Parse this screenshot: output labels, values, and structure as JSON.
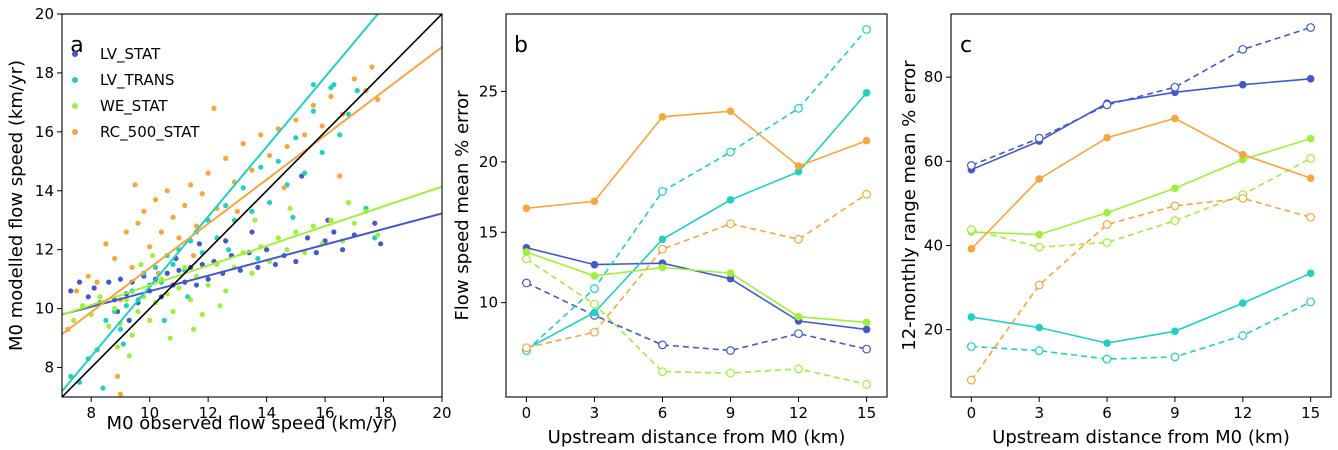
{
  "colors": {
    "LV_STAT": "#4459c9",
    "LV_TRANS": "#1fd0c3",
    "WE_STAT": "#9ef03a",
    "RC_500_STAT": "#f8a53b",
    "identity": "#000000"
  },
  "chart_data": [
    {
      "type": "scatter",
      "panel_label": "a",
      "xlabel": "M0 observed flow speed (km/yr)",
      "ylabel": "M0 modelled flow speed (km/yr)",
      "xlim": [
        7,
        20
      ],
      "ylim": [
        7,
        20
      ],
      "xticks": [
        "8",
        "10",
        "12",
        "14",
        "16",
        "18",
        "20"
      ],
      "yticks": [
        "8",
        "10",
        "12",
        "14",
        "16",
        "18",
        "20"
      ],
      "legend_position": "top-left",
      "identity_line": true,
      "series": [
        {
          "name": "LV_STAT",
          "fit": {
            "slope": 0.264,
            "intercept": 7.95
          },
          "points": [
            [
              7.3,
              10.6
            ],
            [
              7.6,
              10.9
            ],
            [
              7.9,
              10.4
            ],
            [
              8.1,
              10.7
            ],
            [
              8.3,
              10.2
            ],
            [
              8.6,
              10.9
            ],
            [
              8.8,
              10.3
            ],
            [
              9.0,
              11.0
            ],
            [
              9.2,
              10.5
            ],
            [
              9.4,
              10.9
            ],
            [
              9.6,
              10.2
            ],
            [
              9.8,
              11.1
            ],
            [
              10.0,
              10.6
            ],
            [
              10.2,
              11.0
            ],
            [
              10.4,
              10.4
            ],
            [
              10.6,
              11.2
            ],
            [
              10.8,
              10.8
            ],
            [
              11.0,
              11.3
            ],
            [
              11.2,
              10.9
            ],
            [
              11.4,
              11.4
            ],
            [
              11.6,
              10.8
            ],
            [
              11.8,
              11.5
            ],
            [
              12.0,
              11.0
            ],
            [
              12.2,
              11.6
            ],
            [
              12.5,
              11.2
            ],
            [
              12.8,
              11.8
            ],
            [
              13.1,
              11.3
            ],
            [
              13.4,
              11.9
            ],
            [
              13.7,
              11.4
            ],
            [
              14.0,
              12.0
            ],
            [
              14.3,
              11.5
            ],
            [
              14.6,
              11.8
            ],
            [
              15.0,
              11.6
            ],
            [
              15.4,
              12.4
            ],
            [
              15.7,
              11.9
            ],
            [
              16.0,
              12.3
            ],
            [
              16.3,
              12.6
            ],
            [
              16.6,
              12.0
            ],
            [
              17.0,
              12.5
            ],
            [
              17.4,
              13.4
            ],
            [
              17.7,
              12.9
            ],
            [
              17.9,
              12.2
            ],
            [
              15.2,
              14.5
            ],
            [
              16.1,
              13.0
            ],
            [
              13.5,
              12.6
            ],
            [
              12.6,
              12.3
            ],
            [
              9.3,
              9.6
            ],
            [
              8.9,
              9.9
            ],
            [
              10.9,
              11.7
            ],
            [
              11.7,
              12.2
            ]
          ]
        },
        {
          "name": "LV_TRANS",
          "fit": {
            "slope": 1.185,
            "intercept": -1.1
          },
          "points": [
            [
              7.3,
              7.7
            ],
            [
              7.6,
              7.5
            ],
            [
              7.9,
              8.3
            ],
            [
              8.2,
              8.6
            ],
            [
              8.5,
              9.6
            ],
            [
              8.8,
              9.9
            ],
            [
              9.0,
              9.3
            ],
            [
              9.2,
              10.1
            ],
            [
              9.4,
              10.6
            ],
            [
              9.6,
              10.3
            ],
            [
              9.8,
              11.2
            ],
            [
              10.0,
              10.8
            ],
            [
              10.2,
              11.4
            ],
            [
              10.4,
              10.9
            ],
            [
              10.6,
              11.8
            ],
            [
              10.8,
              11.5
            ],
            [
              11.0,
              12.0
            ],
            [
              11.2,
              11.3
            ],
            [
              11.4,
              12.3
            ],
            [
              11.6,
              12.6
            ],
            [
              11.8,
              11.9
            ],
            [
              12.0,
              13.0
            ],
            [
              12.3,
              12.4
            ],
            [
              12.6,
              13.5
            ],
            [
              12.9,
              13.0
            ],
            [
              13.2,
              14.1
            ],
            [
              13.5,
              13.3
            ],
            [
              13.8,
              14.8
            ],
            [
              14.1,
              13.6
            ],
            [
              14.4,
              15.0
            ],
            [
              14.7,
              14.2
            ],
            [
              15.0,
              15.8
            ],
            [
              15.3,
              14.6
            ],
            [
              15.6,
              16.7
            ],
            [
              15.9,
              15.3
            ],
            [
              16.2,
              17.5
            ],
            [
              16.5,
              15.9
            ],
            [
              16.8,
              16.6
            ],
            [
              17.1,
              17.4
            ],
            [
              17.4,
              13.4
            ],
            [
              17.7,
              12.4
            ],
            [
              15.6,
              17.6
            ],
            [
              16.3,
              17.6
            ],
            [
              8.4,
              7.3
            ],
            [
              9.1,
              8.8
            ],
            [
              13.7,
              11.7
            ],
            [
              12.7,
              12.0
            ],
            [
              10.5,
              9.6
            ],
            [
              11.3,
              10.4
            ],
            [
              14.9,
              13.1
            ]
          ]
        },
        {
          "name": "WE_STAT",
          "fit": {
            "slope": 0.335,
            "intercept": 7.44
          },
          "points": [
            [
              7.4,
              9.6
            ],
            [
              7.7,
              10.1
            ],
            [
              8.0,
              9.8
            ],
            [
              8.3,
              10.4
            ],
            [
              8.6,
              9.4
            ],
            [
              8.8,
              10.0
            ],
            [
              9.0,
              9.5
            ],
            [
              9.2,
              10.3
            ],
            [
              9.4,
              9.1
            ],
            [
              9.6,
              9.9
            ],
            [
              9.8,
              10.4
            ],
            [
              10.0,
              9.6
            ],
            [
              10.2,
              10.2
            ],
            [
              10.4,
              11.0
            ],
            [
              10.6,
              10.5
            ],
            [
              10.8,
              9.9
            ],
            [
              11.0,
              10.7
            ],
            [
              11.2,
              11.4
            ],
            [
              11.4,
              10.3
            ],
            [
              11.6,
              11.1
            ],
            [
              11.8,
              9.8
            ],
            [
              12.0,
              10.8
            ],
            [
              12.3,
              11.5
            ],
            [
              12.6,
              10.6
            ],
            [
              12.9,
              11.4
            ],
            [
              13.2,
              11.9
            ],
            [
              13.5,
              11.2
            ],
            [
              13.8,
              12.1
            ],
            [
              14.1,
              11.6
            ],
            [
              14.4,
              12.4
            ],
            [
              14.7,
              12.0
            ],
            [
              15.0,
              12.6
            ],
            [
              15.3,
              11.9
            ],
            [
              15.6,
              12.8
            ],
            [
              15.9,
              12.2
            ],
            [
              16.2,
              13.0
            ],
            [
              16.6,
              12.3
            ],
            [
              17.0,
              12.9
            ],
            [
              17.4,
              13.3
            ],
            [
              17.8,
              12.5
            ],
            [
              8.9,
              8.7
            ],
            [
              9.3,
              8.4
            ],
            [
              10.7,
              9.0
            ],
            [
              11.5,
              9.3
            ],
            [
              12.4,
              10.1
            ],
            [
              13.6,
              13.0
            ],
            [
              14.8,
              13.4
            ],
            [
              16.8,
              13.6
            ],
            [
              10.1,
              11.8
            ],
            [
              9.7,
              11.5
            ]
          ]
        },
        {
          "name": "RC_500_STAT",
          "fit": {
            "slope": 0.75,
            "intercept": 3.88
          },
          "points": [
            [
              7.2,
              9.3
            ],
            [
              7.5,
              10.6
            ],
            [
              7.9,
              11.1
            ],
            [
              8.2,
              10.9
            ],
            [
              8.5,
              12.2
            ],
            [
              8.8,
              11.7
            ],
            [
              9.0,
              10.3
            ],
            [
              9.2,
              12.6
            ],
            [
              9.4,
              11.4
            ],
            [
              9.6,
              12.9
            ],
            [
              9.8,
              13.3
            ],
            [
              10.0,
              12.1
            ],
            [
              10.2,
              13.7
            ],
            [
              10.4,
              12.6
            ],
            [
              10.6,
              14.0
            ],
            [
              10.8,
              13.1
            ],
            [
              11.0,
              12.4
            ],
            [
              11.2,
              13.5
            ],
            [
              11.4,
              14.2
            ],
            [
              11.6,
              12.8
            ],
            [
              11.8,
              13.9
            ],
            [
              12.0,
              14.6
            ],
            [
              12.3,
              13.4
            ],
            [
              12.6,
              15.1
            ],
            [
              12.9,
              14.3
            ],
            [
              13.2,
              15.6
            ],
            [
              13.5,
              14.7
            ],
            [
              13.8,
              15.9
            ],
            [
              14.1,
              15.2
            ],
            [
              14.4,
              16.1
            ],
            [
              14.7,
              15.5
            ],
            [
              15.0,
              16.4
            ],
            [
              15.3,
              15.9
            ],
            [
              15.6,
              16.9
            ],
            [
              15.9,
              16.2
            ],
            [
              16.2,
              17.2
            ],
            [
              16.6,
              16.6
            ],
            [
              17.0,
              17.8
            ],
            [
              17.4,
              17.4
            ],
            [
              17.8,
              17.1
            ],
            [
              12.2,
              16.8
            ],
            [
              9.0,
              7.1
            ],
            [
              8.9,
              7.7
            ],
            [
              9.5,
              14.2
            ],
            [
              10.3,
              11.2
            ],
            [
              11.5,
              11.8
            ],
            [
              13.0,
              13.3
            ],
            [
              16.5,
              14.5
            ],
            [
              17.6,
              18.2
            ],
            [
              14.6,
              14.1
            ]
          ]
        }
      ]
    },
    {
      "type": "line",
      "panel_label": "b",
      "xlabel": "Upstream distance from M0 (km)",
      "ylabel": "Flow speed mean % error",
      "x": [
        0,
        3,
        6,
        9,
        12,
        15
      ],
      "xlim": [
        -0.9,
        15.9
      ],
      "ylim": [
        3.3,
        30.5
      ],
      "xticks": [
        "0",
        "3",
        "6",
        "9",
        "12",
        "15"
      ],
      "yticks": [
        "10",
        "15",
        "20",
        "25"
      ],
      "series": [
        {
          "name": "LV_STAT",
          "style": "solid",
          "values": [
            13.9,
            12.7,
            12.8,
            11.7,
            8.7,
            8.1
          ]
        },
        {
          "name": "LV_STAT",
          "style": "dashed",
          "values": [
            11.4,
            9.1,
            7.0,
            6.6,
            7.8,
            6.7
          ]
        },
        {
          "name": "LV_TRANS",
          "style": "solid",
          "values": [
            6.7,
            9.3,
            14.5,
            17.3,
            19.3,
            24.9
          ]
        },
        {
          "name": "LV_TRANS",
          "style": "dashed",
          "values": [
            6.6,
            11.0,
            17.9,
            20.7,
            23.8,
            29.4
          ]
        },
        {
          "name": "WE_STAT",
          "style": "solid",
          "values": [
            13.6,
            11.9,
            12.5,
            12.1,
            9.0,
            8.6
          ]
        },
        {
          "name": "WE_STAT",
          "style": "dashed",
          "values": [
            13.1,
            9.9,
            5.1,
            5.0,
            5.3,
            4.2
          ]
        },
        {
          "name": "RC_500_STAT",
          "style": "solid",
          "values": [
            16.7,
            17.2,
            23.2,
            23.6,
            19.7,
            21.5
          ]
        },
        {
          "name": "RC_500_STAT",
          "style": "dashed",
          "values": [
            6.8,
            7.9,
            13.8,
            15.6,
            14.5,
            17.7
          ]
        }
      ]
    },
    {
      "type": "line",
      "panel_label": "c",
      "xlabel": "Upstream distance from M0 (km)",
      "ylabel": "12-monthly range mean % error",
      "x": [
        0,
        3,
        6,
        9,
        12,
        15
      ],
      "xlim": [
        -0.9,
        15.9
      ],
      "ylim": [
        4,
        95
      ],
      "xticks": [
        "0",
        "3",
        "6",
        "9",
        "12",
        "15"
      ],
      "yticks": [
        "20",
        "40",
        "60",
        "80"
      ],
      "series": [
        {
          "name": "LV_STAT",
          "style": "solid",
          "values": [
            58,
            64.8,
            73.8,
            76.4,
            78.2,
            79.6
          ]
        },
        {
          "name": "LV_STAT",
          "style": "dashed",
          "values": [
            59,
            65.5,
            73.4,
            77.6,
            86.6,
            91.8
          ]
        },
        {
          "name": "LV_TRANS",
          "style": "solid",
          "values": [
            23.0,
            20.5,
            16.8,
            19.6,
            26.3,
            33.4
          ]
        },
        {
          "name": "LV_TRANS",
          "style": "dashed",
          "values": [
            16.0,
            15.0,
            13.0,
            13.5,
            18.6,
            26.6
          ]
        },
        {
          "name": "WE_STAT",
          "style": "solid",
          "values": [
            43.2,
            42.6,
            47.8,
            53.6,
            60.4,
            65.4
          ]
        },
        {
          "name": "WE_STAT",
          "style": "dashed",
          "values": [
            43.8,
            39.6,
            40.7,
            45.9,
            52.1,
            60.7
          ]
        },
        {
          "name": "RC_500_STAT",
          "style": "solid",
          "values": [
            39.2,
            55.8,
            65.6,
            70.2,
            61.6,
            56.0
          ]
        },
        {
          "name": "RC_500_STAT",
          "style": "dashed",
          "values": [
            8.0,
            30.6,
            45.0,
            49.4,
            51.2,
            46.7
          ]
        }
      ]
    }
  ]
}
